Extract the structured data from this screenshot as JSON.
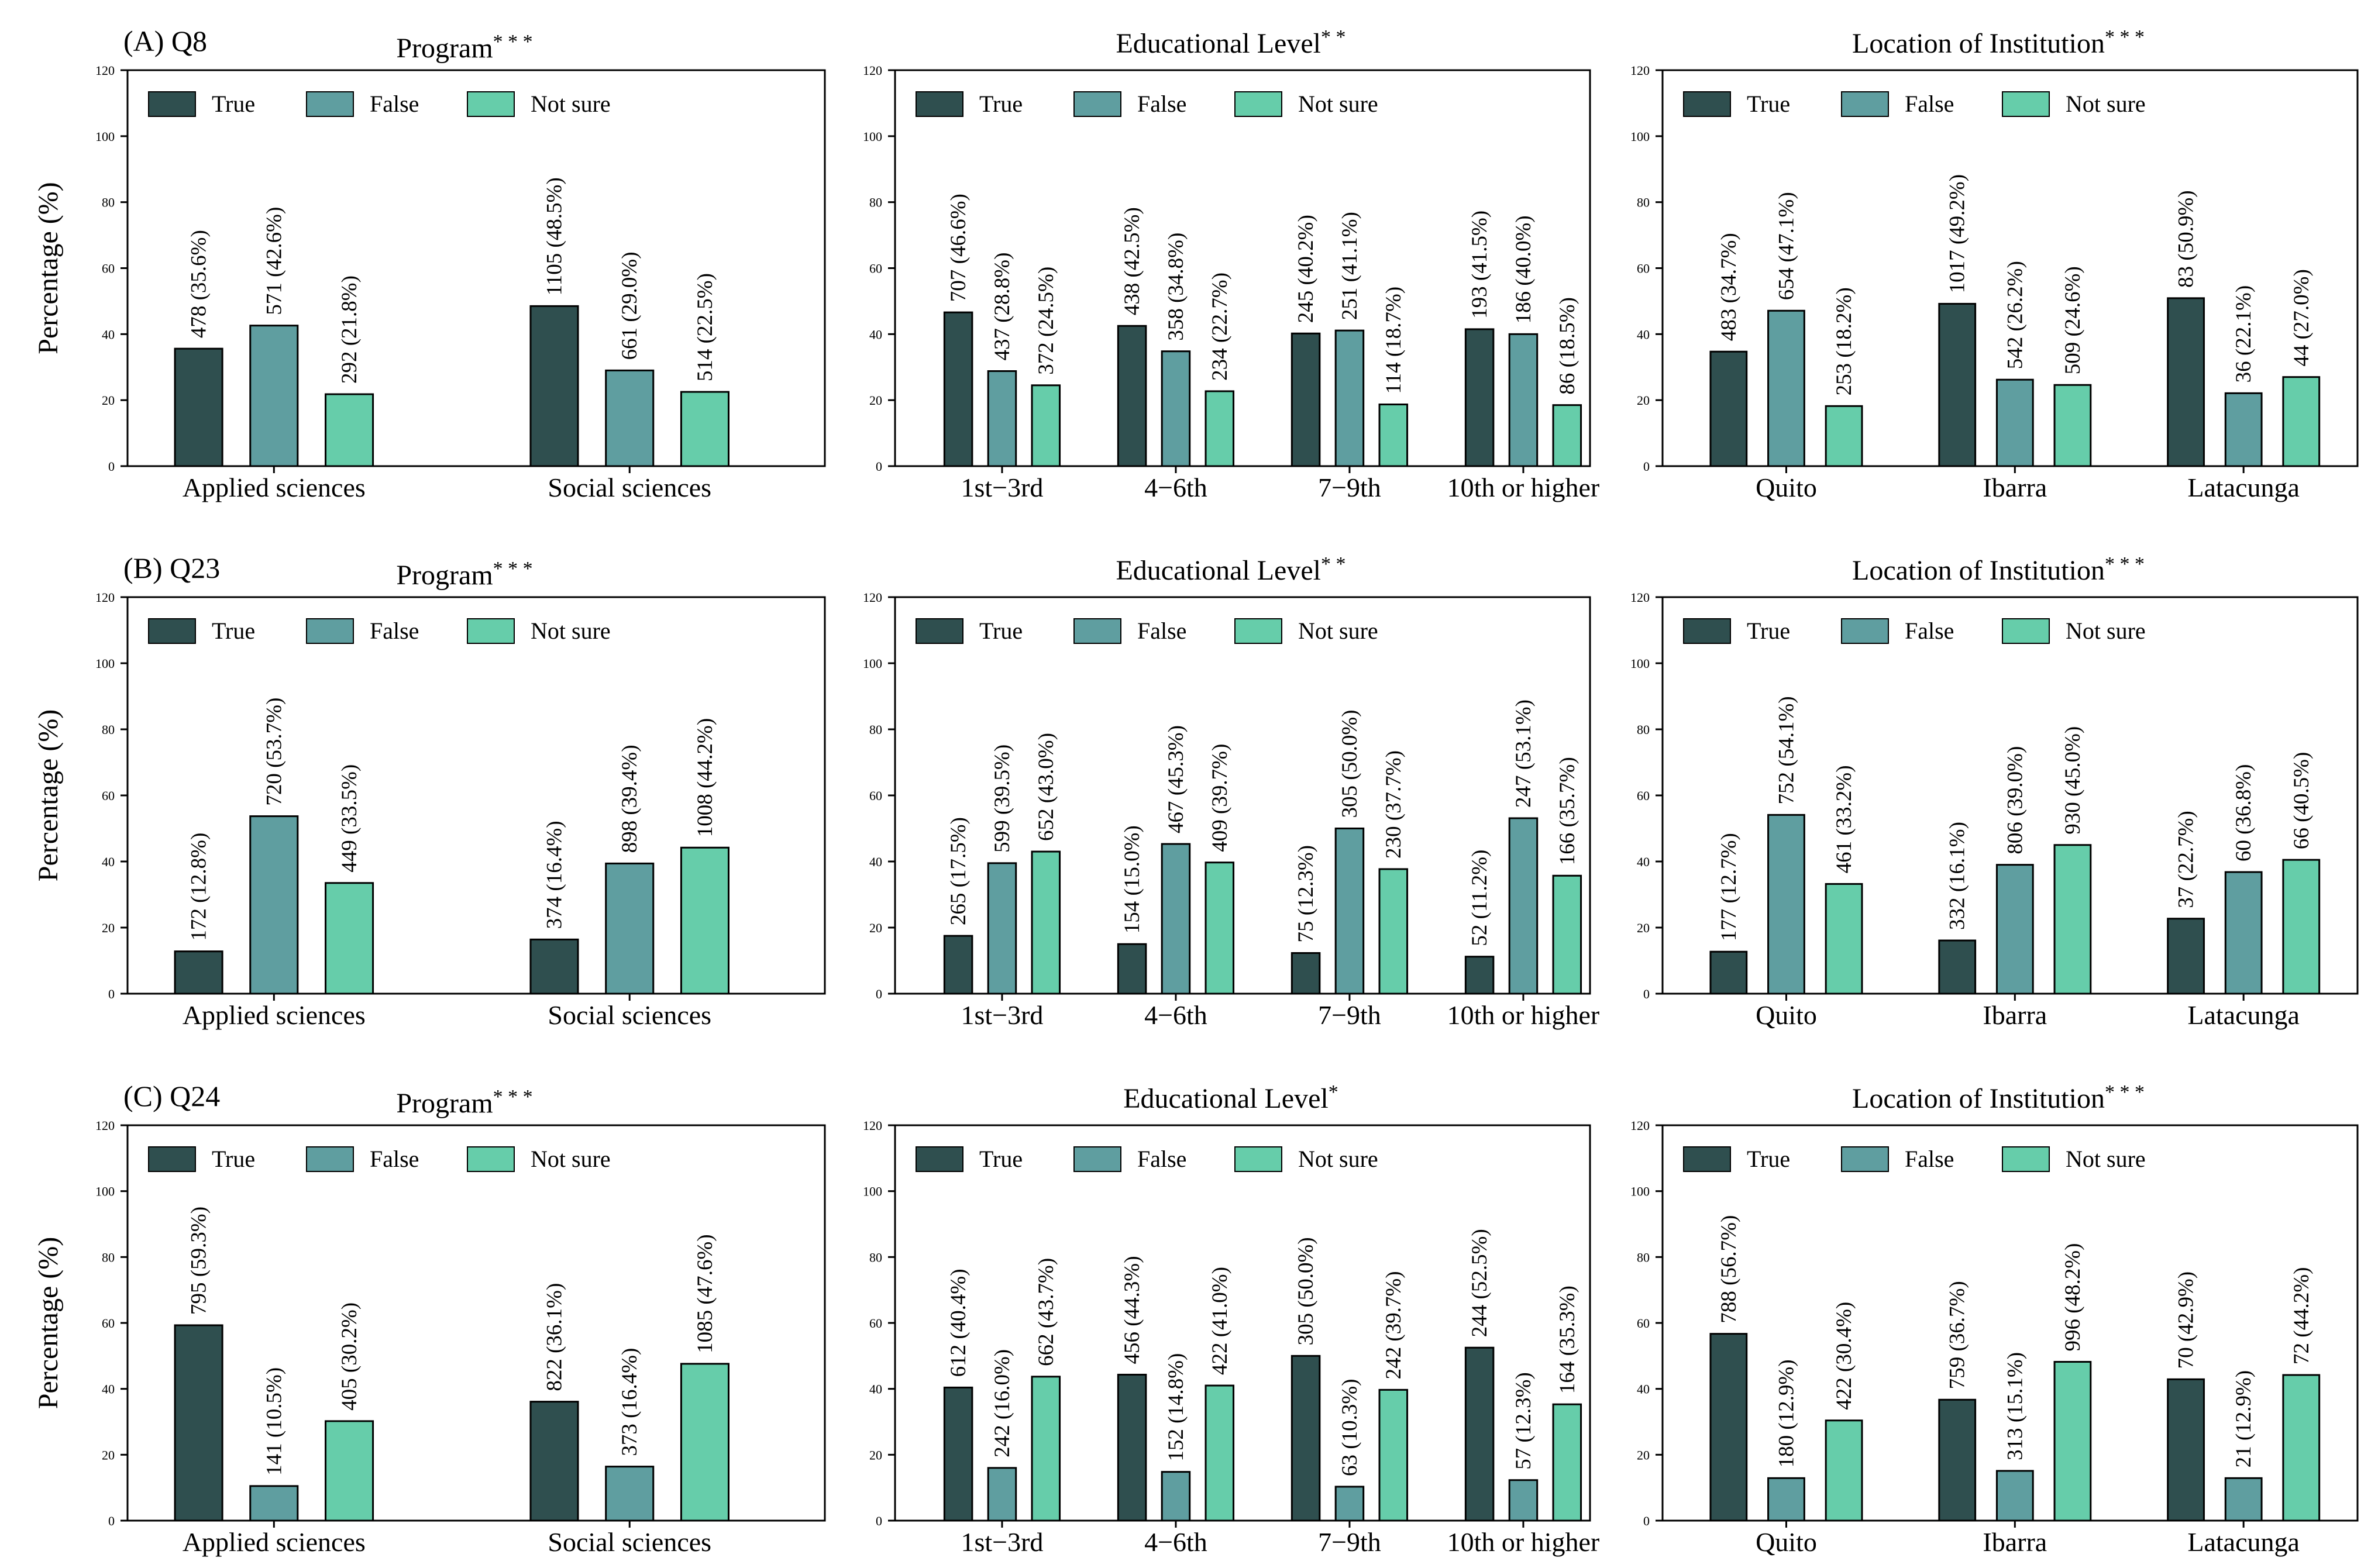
{
  "colors": {
    "True": "#2f4f4f",
    "False": "#5f9ea0",
    "Not sure": "#66cdaa"
  },
  "chart_data": [
    {
      "type": "bar",
      "row_label": "(A) Q8",
      "title": "Program",
      "title_mark": "* * *",
      "ylabel": "Percentage (%)",
      "ylim": [
        0,
        120
      ],
      "yticks": [
        "0",
        "20",
        "40",
        "60",
        "80",
        "100",
        "120"
      ],
      "legend": [
        "True",
        "False",
        "Not sure"
      ],
      "categories": [
        "Applied sciences",
        "Social sciences"
      ],
      "series": [
        {
          "name": "True",
          "values": [
            35.6,
            48.5
          ],
          "labels": [
            "478 (35.6%)",
            "1105 (48.5%)"
          ]
        },
        {
          "name": "False",
          "values": [
            42.6,
            29.0
          ],
          "labels": [
            "571 (42.6%)",
            "661 (29.0%)"
          ]
        },
        {
          "name": "Not sure",
          "values": [
            21.8,
            22.5
          ],
          "labels": [
            "292 (21.8%)",
            "514 (22.5%)"
          ]
        }
      ]
    },
    {
      "type": "bar",
      "row_label": "",
      "title": "Educational Level",
      "title_mark": "* *",
      "ylabel": "",
      "ylim": [
        0,
        120
      ],
      "yticks": [
        "0",
        "20",
        "40",
        "60",
        "80",
        "100",
        "120"
      ],
      "legend": [
        "True",
        "False",
        "Not sure"
      ],
      "categories": [
        "1st−3rd",
        "4−6th",
        "7−9th",
        "10th or higher"
      ],
      "series": [
        {
          "name": "True",
          "values": [
            46.6,
            42.5,
            40.2,
            41.5
          ],
          "labels": [
            "707 (46.6%)",
            "438 (42.5%)",
            "245 (40.2%)",
            "193 (41.5%)"
          ]
        },
        {
          "name": "False",
          "values": [
            28.8,
            34.8,
            41.1,
            40.0
          ],
          "labels": [
            "437 (28.8%)",
            "358 (34.8%)",
            "251 (41.1%)",
            "186 (40.0%)"
          ]
        },
        {
          "name": "Not sure",
          "values": [
            24.5,
            22.7,
            18.7,
            18.5
          ],
          "labels": [
            "372 (24.5%)",
            "234 (22.7%)",
            "114 (18.7%)",
            "86 (18.5%)"
          ]
        }
      ]
    },
    {
      "type": "bar",
      "row_label": "",
      "title": "Location of Institution",
      "title_mark": "* * *",
      "ylabel": "",
      "ylim": [
        0,
        120
      ],
      "yticks": [
        "0",
        "20",
        "40",
        "60",
        "80",
        "100",
        "120"
      ],
      "legend": [
        "True",
        "False",
        "Not sure"
      ],
      "categories": [
        "Quito",
        "Ibarra",
        "Latacunga"
      ],
      "series": [
        {
          "name": "True",
          "values": [
            34.7,
            49.2,
            50.9
          ],
          "labels": [
            "483 (34.7%)",
            "1017 (49.2%)",
            "83 (50.9%)"
          ]
        },
        {
          "name": "False",
          "values": [
            47.1,
            26.2,
            22.1
          ],
          "labels": [
            "654 (47.1%)",
            "542 (26.2%)",
            "36 (22.1%)"
          ]
        },
        {
          "name": "Not sure",
          "values": [
            18.2,
            24.6,
            27.0
          ],
          "labels": [
            "253 (18.2%)",
            "509 (24.6%)",
            "44 (27.0%)"
          ]
        }
      ]
    },
    {
      "type": "bar",
      "row_label": "(B) Q23",
      "title": "Program",
      "title_mark": "* * *",
      "ylabel": "Percentage (%)",
      "ylim": [
        0,
        120
      ],
      "yticks": [
        "0",
        "20",
        "40",
        "60",
        "80",
        "100",
        "120"
      ],
      "legend": [
        "True",
        "False",
        "Not sure"
      ],
      "categories": [
        "Applied sciences",
        "Social sciences"
      ],
      "series": [
        {
          "name": "True",
          "values": [
            12.8,
            16.4
          ],
          "labels": [
            "172 (12.8%)",
            "374 (16.4%)"
          ]
        },
        {
          "name": "False",
          "values": [
            53.7,
            39.4
          ],
          "labels": [
            "720 (53.7%)",
            "898 (39.4%)"
          ]
        },
        {
          "name": "Not sure",
          "values": [
            33.5,
            44.2
          ],
          "labels": [
            "449 (33.5%)",
            "1008 (44.2%)"
          ]
        }
      ]
    },
    {
      "type": "bar",
      "row_label": "",
      "title": "Educational Level",
      "title_mark": "* *",
      "ylabel": "",
      "ylim": [
        0,
        120
      ],
      "yticks": [
        "0",
        "20",
        "40",
        "60",
        "80",
        "100",
        "120"
      ],
      "legend": [
        "True",
        "False",
        "Not sure"
      ],
      "categories": [
        "1st−3rd",
        "4−6th",
        "7−9th",
        "10th or higher"
      ],
      "series": [
        {
          "name": "True",
          "values": [
            17.5,
            15.0,
            12.3,
            11.2
          ],
          "labels": [
            "265 (17.5%)",
            "154 (15.0%)",
            "75 (12.3%)",
            "52 (11.2%)"
          ]
        },
        {
          "name": "False",
          "values": [
            39.5,
            45.3,
            50.0,
            53.1
          ],
          "labels": [
            "599 (39.5%)",
            "467 (45.3%)",
            "305 (50.0%)",
            "247 (53.1%)"
          ]
        },
        {
          "name": "Not sure",
          "values": [
            43.0,
            39.7,
            37.7,
            35.7
          ],
          "labels": [
            "652 (43.0%)",
            "409 (39.7%)",
            "230 (37.7%)",
            "166 (35.7%)"
          ]
        }
      ]
    },
    {
      "type": "bar",
      "row_label": "",
      "title": "Location of Institution",
      "title_mark": "* * *",
      "ylabel": "",
      "ylim": [
        0,
        120
      ],
      "yticks": [
        "0",
        "20",
        "40",
        "60",
        "80",
        "100",
        "120"
      ],
      "legend": [
        "True",
        "False",
        "Not sure"
      ],
      "categories": [
        "Quito",
        "Ibarra",
        "Latacunga"
      ],
      "series": [
        {
          "name": "True",
          "values": [
            12.7,
            16.1,
            22.7
          ],
          "labels": [
            "177 (12.7%)",
            "332 (16.1%)",
            "37 (22.7%)"
          ]
        },
        {
          "name": "False",
          "values": [
            54.1,
            39.0,
            36.8
          ],
          "labels": [
            "752 (54.1%)",
            "806 (39.0%)",
            "60 (36.8%)"
          ]
        },
        {
          "name": "Not sure",
          "values": [
            33.2,
            45.0,
            40.5
          ],
          "labels": [
            "461 (33.2%)",
            "930 (45.0%)",
            "66 (40.5%)"
          ]
        }
      ]
    },
    {
      "type": "bar",
      "row_label": "(C) Q24",
      "title": "Program",
      "title_mark": "* * *",
      "ylabel": "Percentage (%)",
      "ylim": [
        0,
        120
      ],
      "yticks": [
        "0",
        "20",
        "40",
        "60",
        "80",
        "100",
        "120"
      ],
      "legend": [
        "True",
        "False",
        "Not sure"
      ],
      "categories": [
        "Applied sciences",
        "Social sciences"
      ],
      "series": [
        {
          "name": "True",
          "values": [
            59.3,
            36.1
          ],
          "labels": [
            "795 (59.3%)",
            "822 (36.1%)"
          ]
        },
        {
          "name": "False",
          "values": [
            10.5,
            16.4
          ],
          "labels": [
            "141 (10.5%)",
            "373 (16.4%)"
          ]
        },
        {
          "name": "Not sure",
          "values": [
            30.2,
            47.6
          ],
          "labels": [
            "405 (30.2%)",
            "1085 (47.6%)"
          ]
        }
      ]
    },
    {
      "type": "bar",
      "row_label": "",
      "title": "Educational Level",
      "title_mark": "*",
      "ylabel": "",
      "ylim": [
        0,
        120
      ],
      "yticks": [
        "0",
        "20",
        "40",
        "60",
        "80",
        "100",
        "120"
      ],
      "legend": [
        "True",
        "False",
        "Not sure"
      ],
      "categories": [
        "1st−3rd",
        "4−6th",
        "7−9th",
        "10th or higher"
      ],
      "series": [
        {
          "name": "True",
          "values": [
            40.4,
            44.3,
            50.0,
            52.5
          ],
          "labels": [
            "612 (40.4%)",
            "456 (44.3%)",
            "305 (50.0%)",
            "244 (52.5%)"
          ]
        },
        {
          "name": "False",
          "values": [
            16.0,
            14.8,
            10.3,
            12.3
          ],
          "labels": [
            "242 (16.0%)",
            "152 (14.8%)",
            "63 (10.3%)",
            "57 (12.3%)"
          ]
        },
        {
          "name": "Not sure",
          "values": [
            43.7,
            41.0,
            39.7,
            35.3
          ],
          "labels": [
            "662 (43.7%)",
            "422 (41.0%)",
            "242 (39.7%)",
            "164 (35.3%)"
          ]
        }
      ]
    },
    {
      "type": "bar",
      "row_label": "",
      "title": "Location of Institution",
      "title_mark": "* * *",
      "ylabel": "",
      "ylim": [
        0,
        120
      ],
      "yticks": [
        "0",
        "20",
        "40",
        "60",
        "80",
        "100",
        "120"
      ],
      "legend": [
        "True",
        "False",
        "Not sure"
      ],
      "categories": [
        "Quito",
        "Ibarra",
        "Latacunga"
      ],
      "series": [
        {
          "name": "True",
          "values": [
            56.7,
            36.7,
            42.9
          ],
          "labels": [
            "788 (56.7%)",
            "759 (36.7%)",
            "70 (42.9%)"
          ]
        },
        {
          "name": "False",
          "values": [
            12.9,
            15.1,
            12.9
          ],
          "labels": [
            "180 (12.9%)",
            "313 (15.1%)",
            "21 (12.9%)"
          ]
        },
        {
          "name": "Not sure",
          "values": [
            30.4,
            48.2,
            44.2
          ],
          "labels": [
            "422 (30.4%)",
            "996 (48.2%)",
            "72 (44.2%)"
          ]
        }
      ]
    }
  ]
}
